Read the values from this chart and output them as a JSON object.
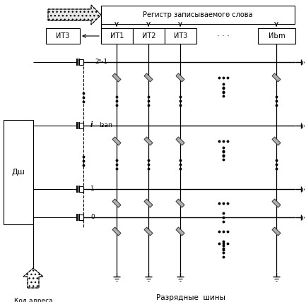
{
  "fig_width": 4.33,
  "fig_height": 4.28,
  "dpi": 100,
  "bg_color": "#ffffff",
  "title_register": "Регистр записываемого слова",
  "label_IT1": "ИТ1",
  "label_IT2": "ИТ2",
  "label_IT3": "ИТ3",
  "label_ITm": "ИЬm",
  "label_ITZ": "ИТ3",
  "label_Dsh": "Дш",
  "label_row_2n1": "2ⁿ-1",
  "label_row_i": "i",
  "label_Izap": "Iзап",
  "label_row_1": "1",
  "label_row_0": "0",
  "label_addr": "Код адреса",
  "label_bitbus": "Разрядные  шины"
}
